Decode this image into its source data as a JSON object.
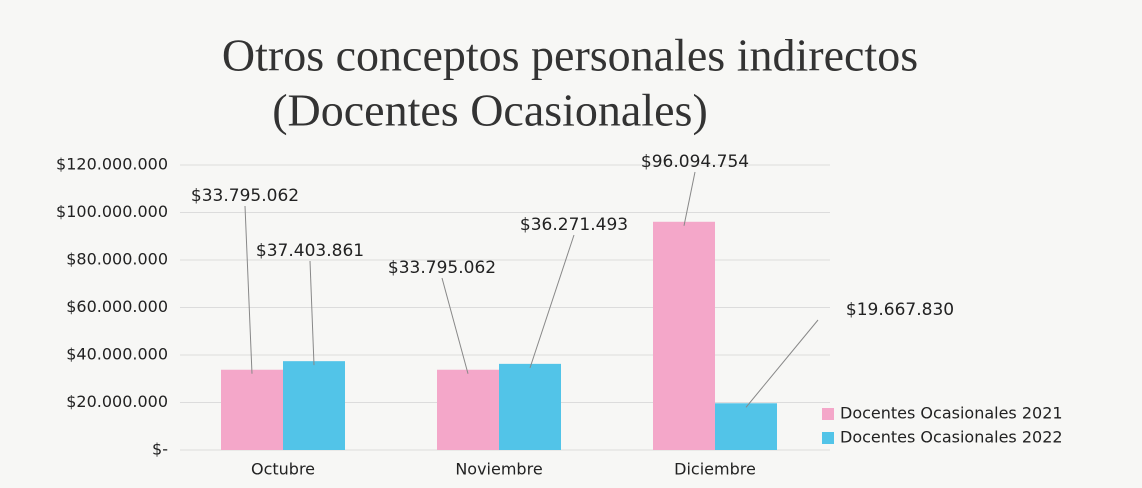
{
  "chart_data": {
    "type": "bar",
    "title": [
      "Otros conceptos personales indirectos",
      "(Docentes Ocasionales)"
    ],
    "categories": [
      "Octubre",
      "Noviembre",
      "Diciembre"
    ],
    "series": [
      {
        "name": "Docentes Ocasionales 2021",
        "color": "#f4a7c9",
        "values": [
          33795062,
          33795062,
          96094754
        ],
        "value_labels": [
          "$33.795.062",
          "$33.795.062",
          "$96.094.754"
        ]
      },
      {
        "name": "Docentes Ocasionales 2022",
        "color": "#52c4e8",
        "values": [
          37403861,
          36271493,
          19667830
        ],
        "value_labels": [
          "$37.403.861",
          "$36.271.493",
          "$19.667.830"
        ]
      }
    ],
    "ylim": [
      0,
      120000000
    ],
    "yticks": [
      {
        "value": 0,
        "label": "$-"
      },
      {
        "value": 20000000,
        "label": "$20.000.000"
      },
      {
        "value": 40000000,
        "label": "$40.000.000"
      },
      {
        "value": 60000000,
        "label": "$60.000.000"
      },
      {
        "value": 80000000,
        "label": "$80.000.000"
      },
      {
        "value": 100000000,
        "label": "$100.000.000"
      },
      {
        "value": 120000000,
        "label": "$120.000.000"
      }
    ],
    "grid": true,
    "legend": "bottom-right"
  }
}
